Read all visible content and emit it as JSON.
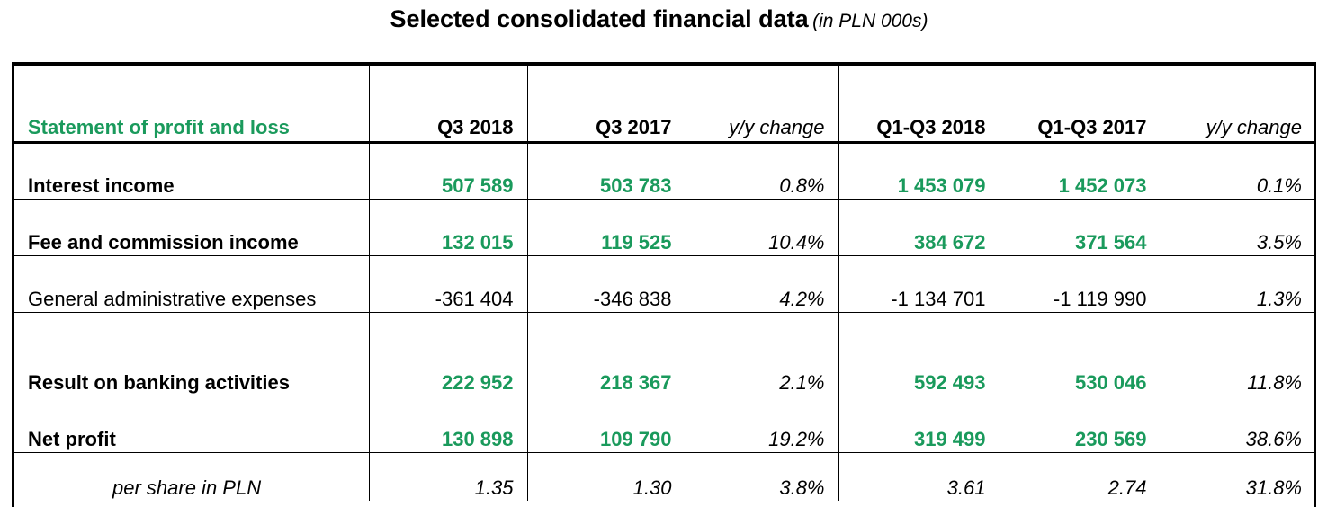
{
  "title": {
    "main": "Selected consolidated financial data",
    "unit": "(in PLN 000s)"
  },
  "colors": {
    "accent_green": "#1a9a5c"
  },
  "table": {
    "header": [
      "Statement of profit and loss",
      "Q3 2018",
      "Q3 2017",
      "y/y change",
      "Q1-Q3 2018",
      "Q1-Q3 2017",
      "y/y change"
    ],
    "rows": [
      [
        "Interest income",
        "507 589",
        "503 783",
        "0.8%",
        "1 453 079",
        "1 452 073",
        "0.1%"
      ],
      [
        "Fee and commission income",
        "132 015",
        "119 525",
        "10.4%",
        "384 672",
        "371 564",
        "3.5%"
      ],
      [
        "General administrative expenses",
        "-361 404",
        "-346 838",
        "4.2%",
        "-1 134 701",
        "-1 119 990",
        "1.3%"
      ],
      [
        "Result on banking activities",
        "222 952",
        "218 367",
        "2.1%",
        "592 493",
        "530 046",
        "11.8%"
      ],
      [
        "Net profit",
        "130 898",
        "109 790",
        "19.2%",
        "319 499",
        "230 569",
        "38.6%"
      ],
      [
        "per share in PLN",
        "1.35",
        "1.30",
        "3.8%",
        "3.61",
        "2.74",
        "31.8%"
      ]
    ]
  }
}
